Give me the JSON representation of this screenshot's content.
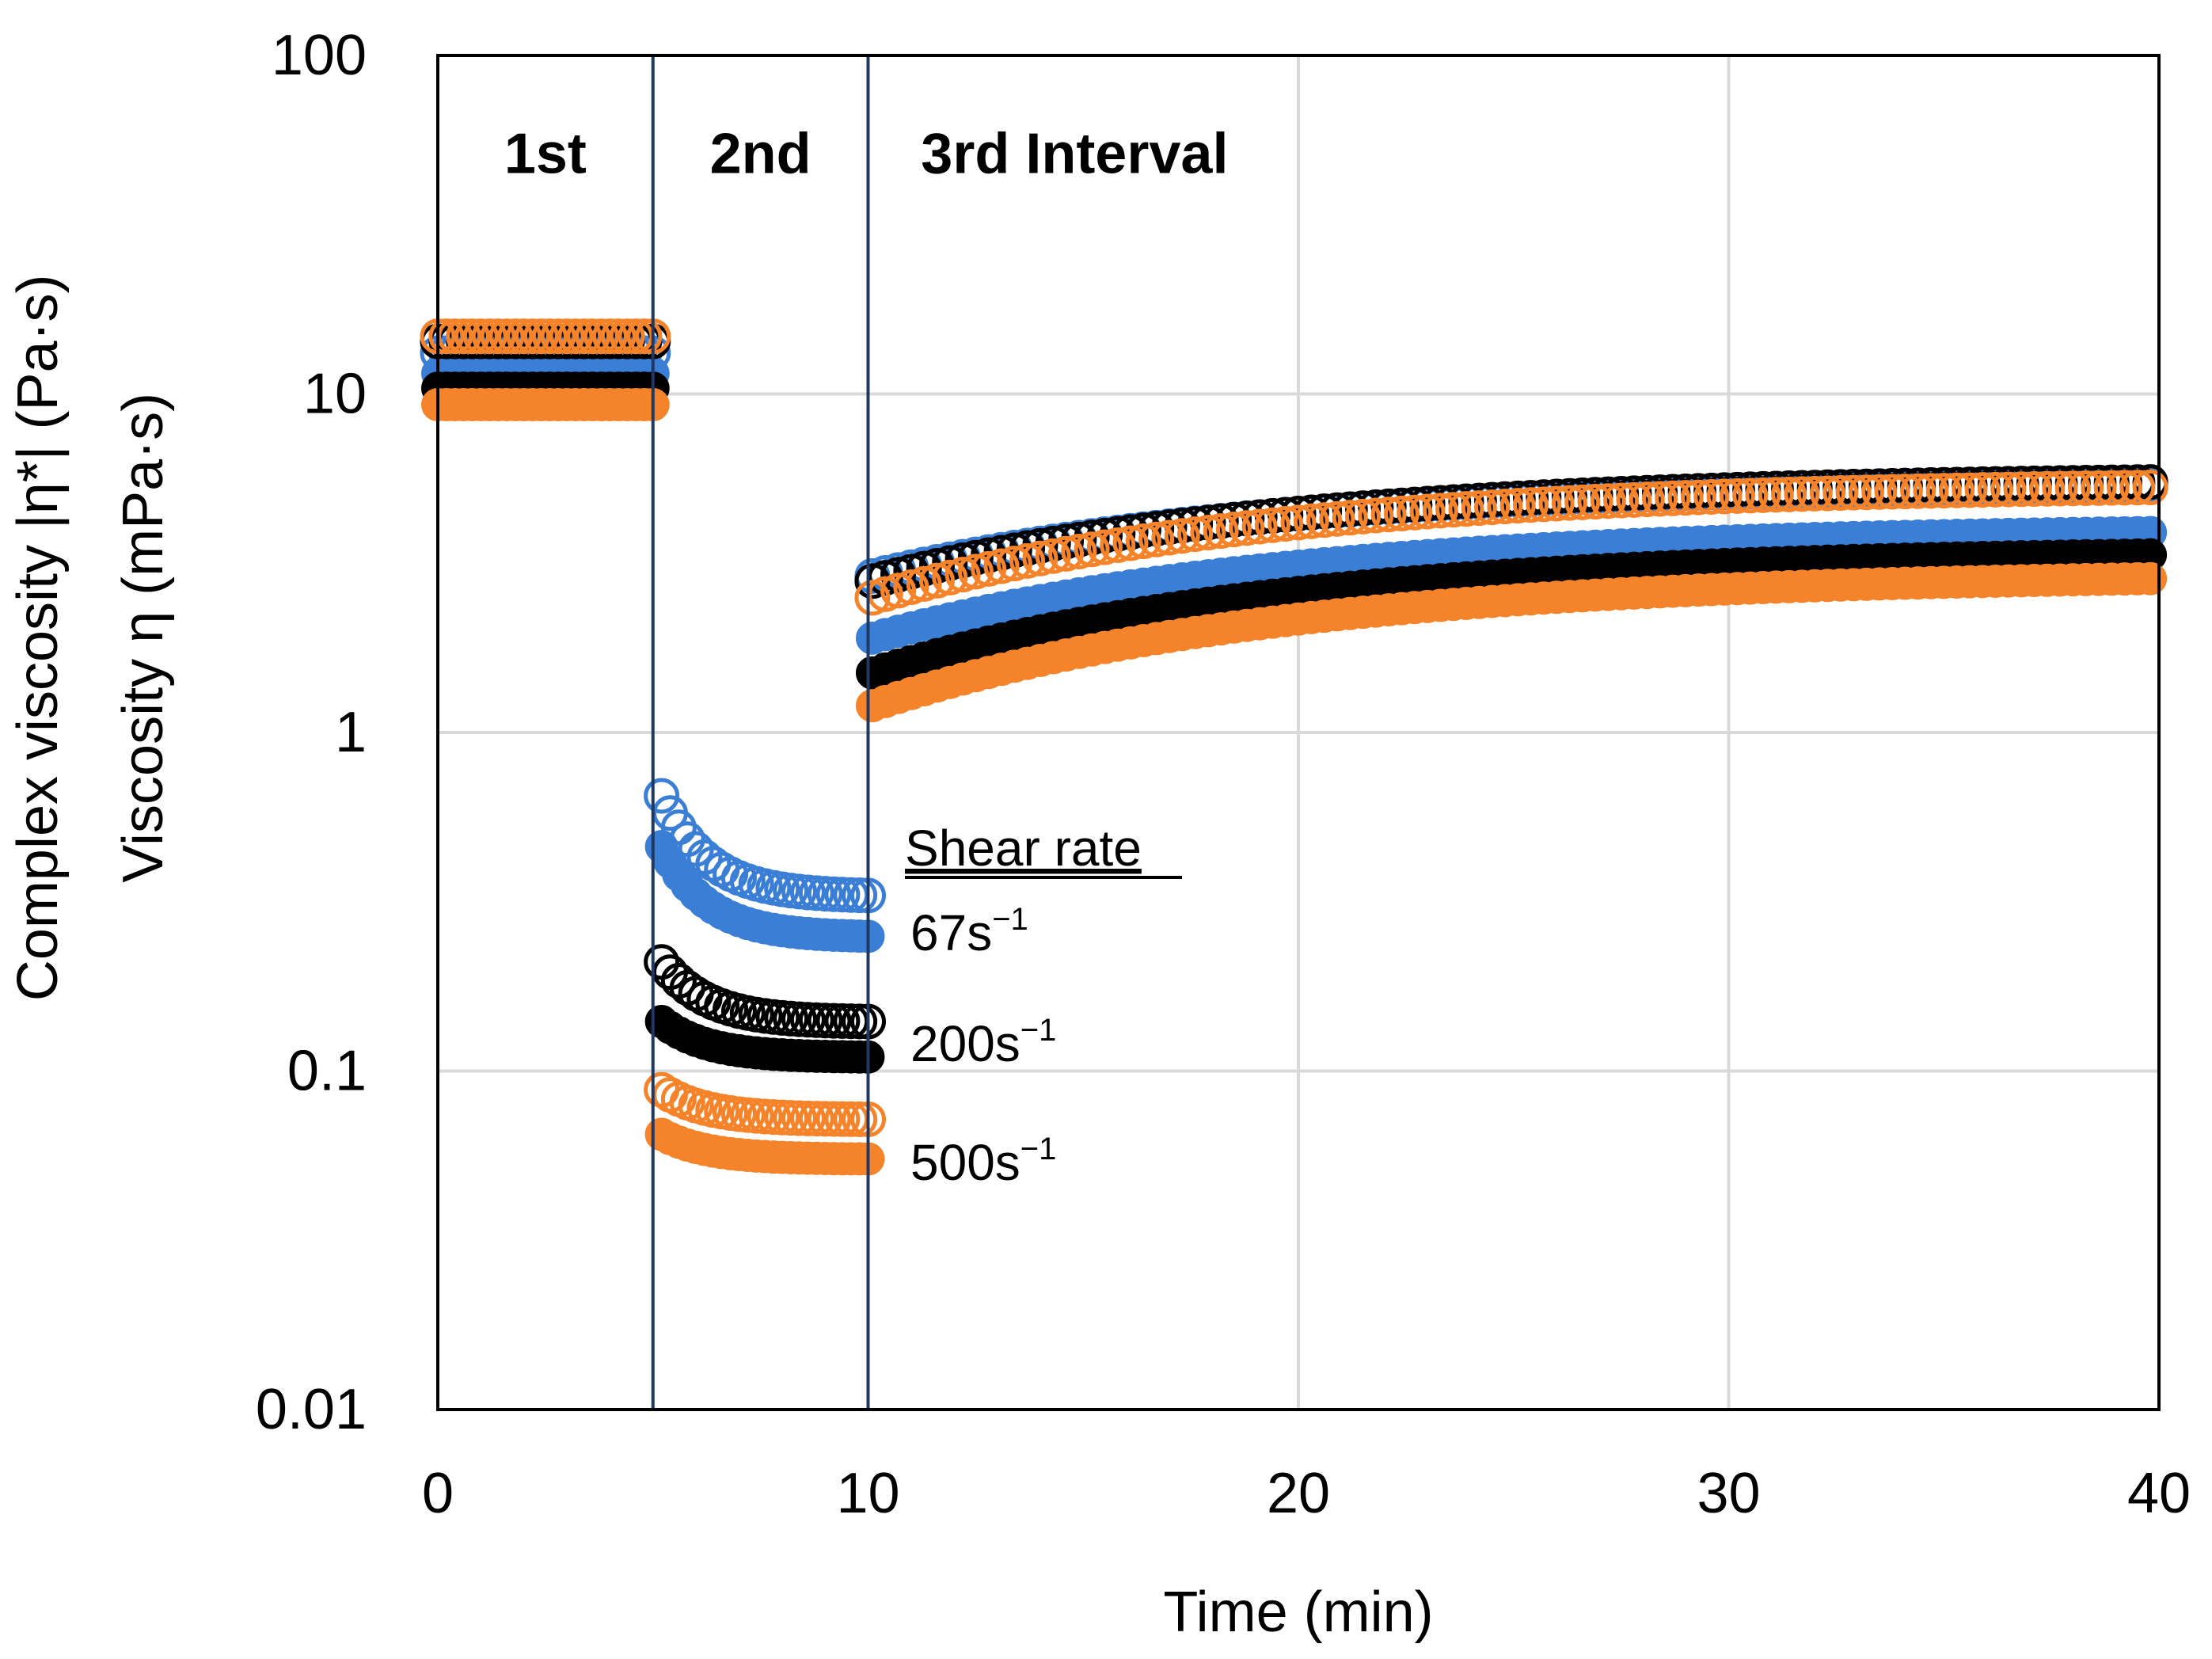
{
  "chart_data": {
    "type": "scatter",
    "title": "",
    "xlabel": "Time (min)",
    "ylabel_line1": "Complex viscosity |η*| (Pa·s)",
    "ylabel_line2": "Viscosity η (mPa·s)",
    "xlim": [
      0,
      40
    ],
    "ylim": [
      0.01,
      100
    ],
    "yscale": "log",
    "grid": true,
    "x_ticks": [
      0,
      10,
      20,
      30,
      40
    ],
    "x_tick_labels": [
      "0",
      "10",
      "20",
      "30",
      "40"
    ],
    "y_ticks": [
      0.01,
      0.1,
      1,
      10,
      100
    ],
    "y_tick_labels": [
      "0.01",
      "0.1",
      "1",
      "10",
      "100"
    ],
    "interval_boundaries": [
      5,
      10
    ],
    "interval_labels": [
      {
        "text": "1st",
        "x": 2.5,
        "y": 45
      },
      {
        "text": "2nd",
        "x": 7.5,
        "y": 45
      },
      {
        "text": "3rd Interval",
        "x": 14.8,
        "y": 45
      }
    ],
    "legend": {
      "title": "Shear rate",
      "entries": [
        {
          "base": "67s",
          "sup": "−1",
          "color": "#3a7fd5"
        },
        {
          "base": "200s",
          "sup": "−1",
          "color": "#000000"
        },
        {
          "base": "500s",
          "sup": "−1",
          "color": "#f5832a"
        }
      ]
    },
    "series": [
      {
        "name": "67s-1 open",
        "marker": "open",
        "color": "#3a7fd5",
        "y1": 13.2,
        "y2_start": 0.65,
        "y2_end": 0.33,
        "y3_start": 2.9,
        "y3_end": 5.4
      },
      {
        "name": "200s-1 open",
        "marker": "open",
        "color": "#000000",
        "y1": 14.3,
        "y2_start": 0.21,
        "y2_end": 0.14,
        "y3_start": 2.8,
        "y3_end": 5.5
      },
      {
        "name": "500s-1 open",
        "marker": "open",
        "color": "#f5832a",
        "y1": 14.8,
        "y2_start": 0.088,
        "y2_end": 0.072,
        "y3_start": 2.5,
        "y3_end": 5.3
      },
      {
        "name": "67s-1 filled",
        "marker": "filled",
        "color": "#3a7fd5",
        "y1": 11.5,
        "y2_start": 0.46,
        "y2_end": 0.25,
        "y3_start": 1.9,
        "y3_end": 3.9
      },
      {
        "name": "200s-1 filled",
        "marker": "filled",
        "color": "#000000",
        "y1": 10.4,
        "y2_start": 0.14,
        "y2_end": 0.11,
        "y3_start": 1.5,
        "y3_end": 3.35
      },
      {
        "name": "500s-1 filled",
        "marker": "filled",
        "color": "#f5832a",
        "y1": 9.3,
        "y2_start": 0.065,
        "y2_end": 0.055,
        "y3_start": 1.2,
        "y3_end": 2.85
      }
    ]
  }
}
